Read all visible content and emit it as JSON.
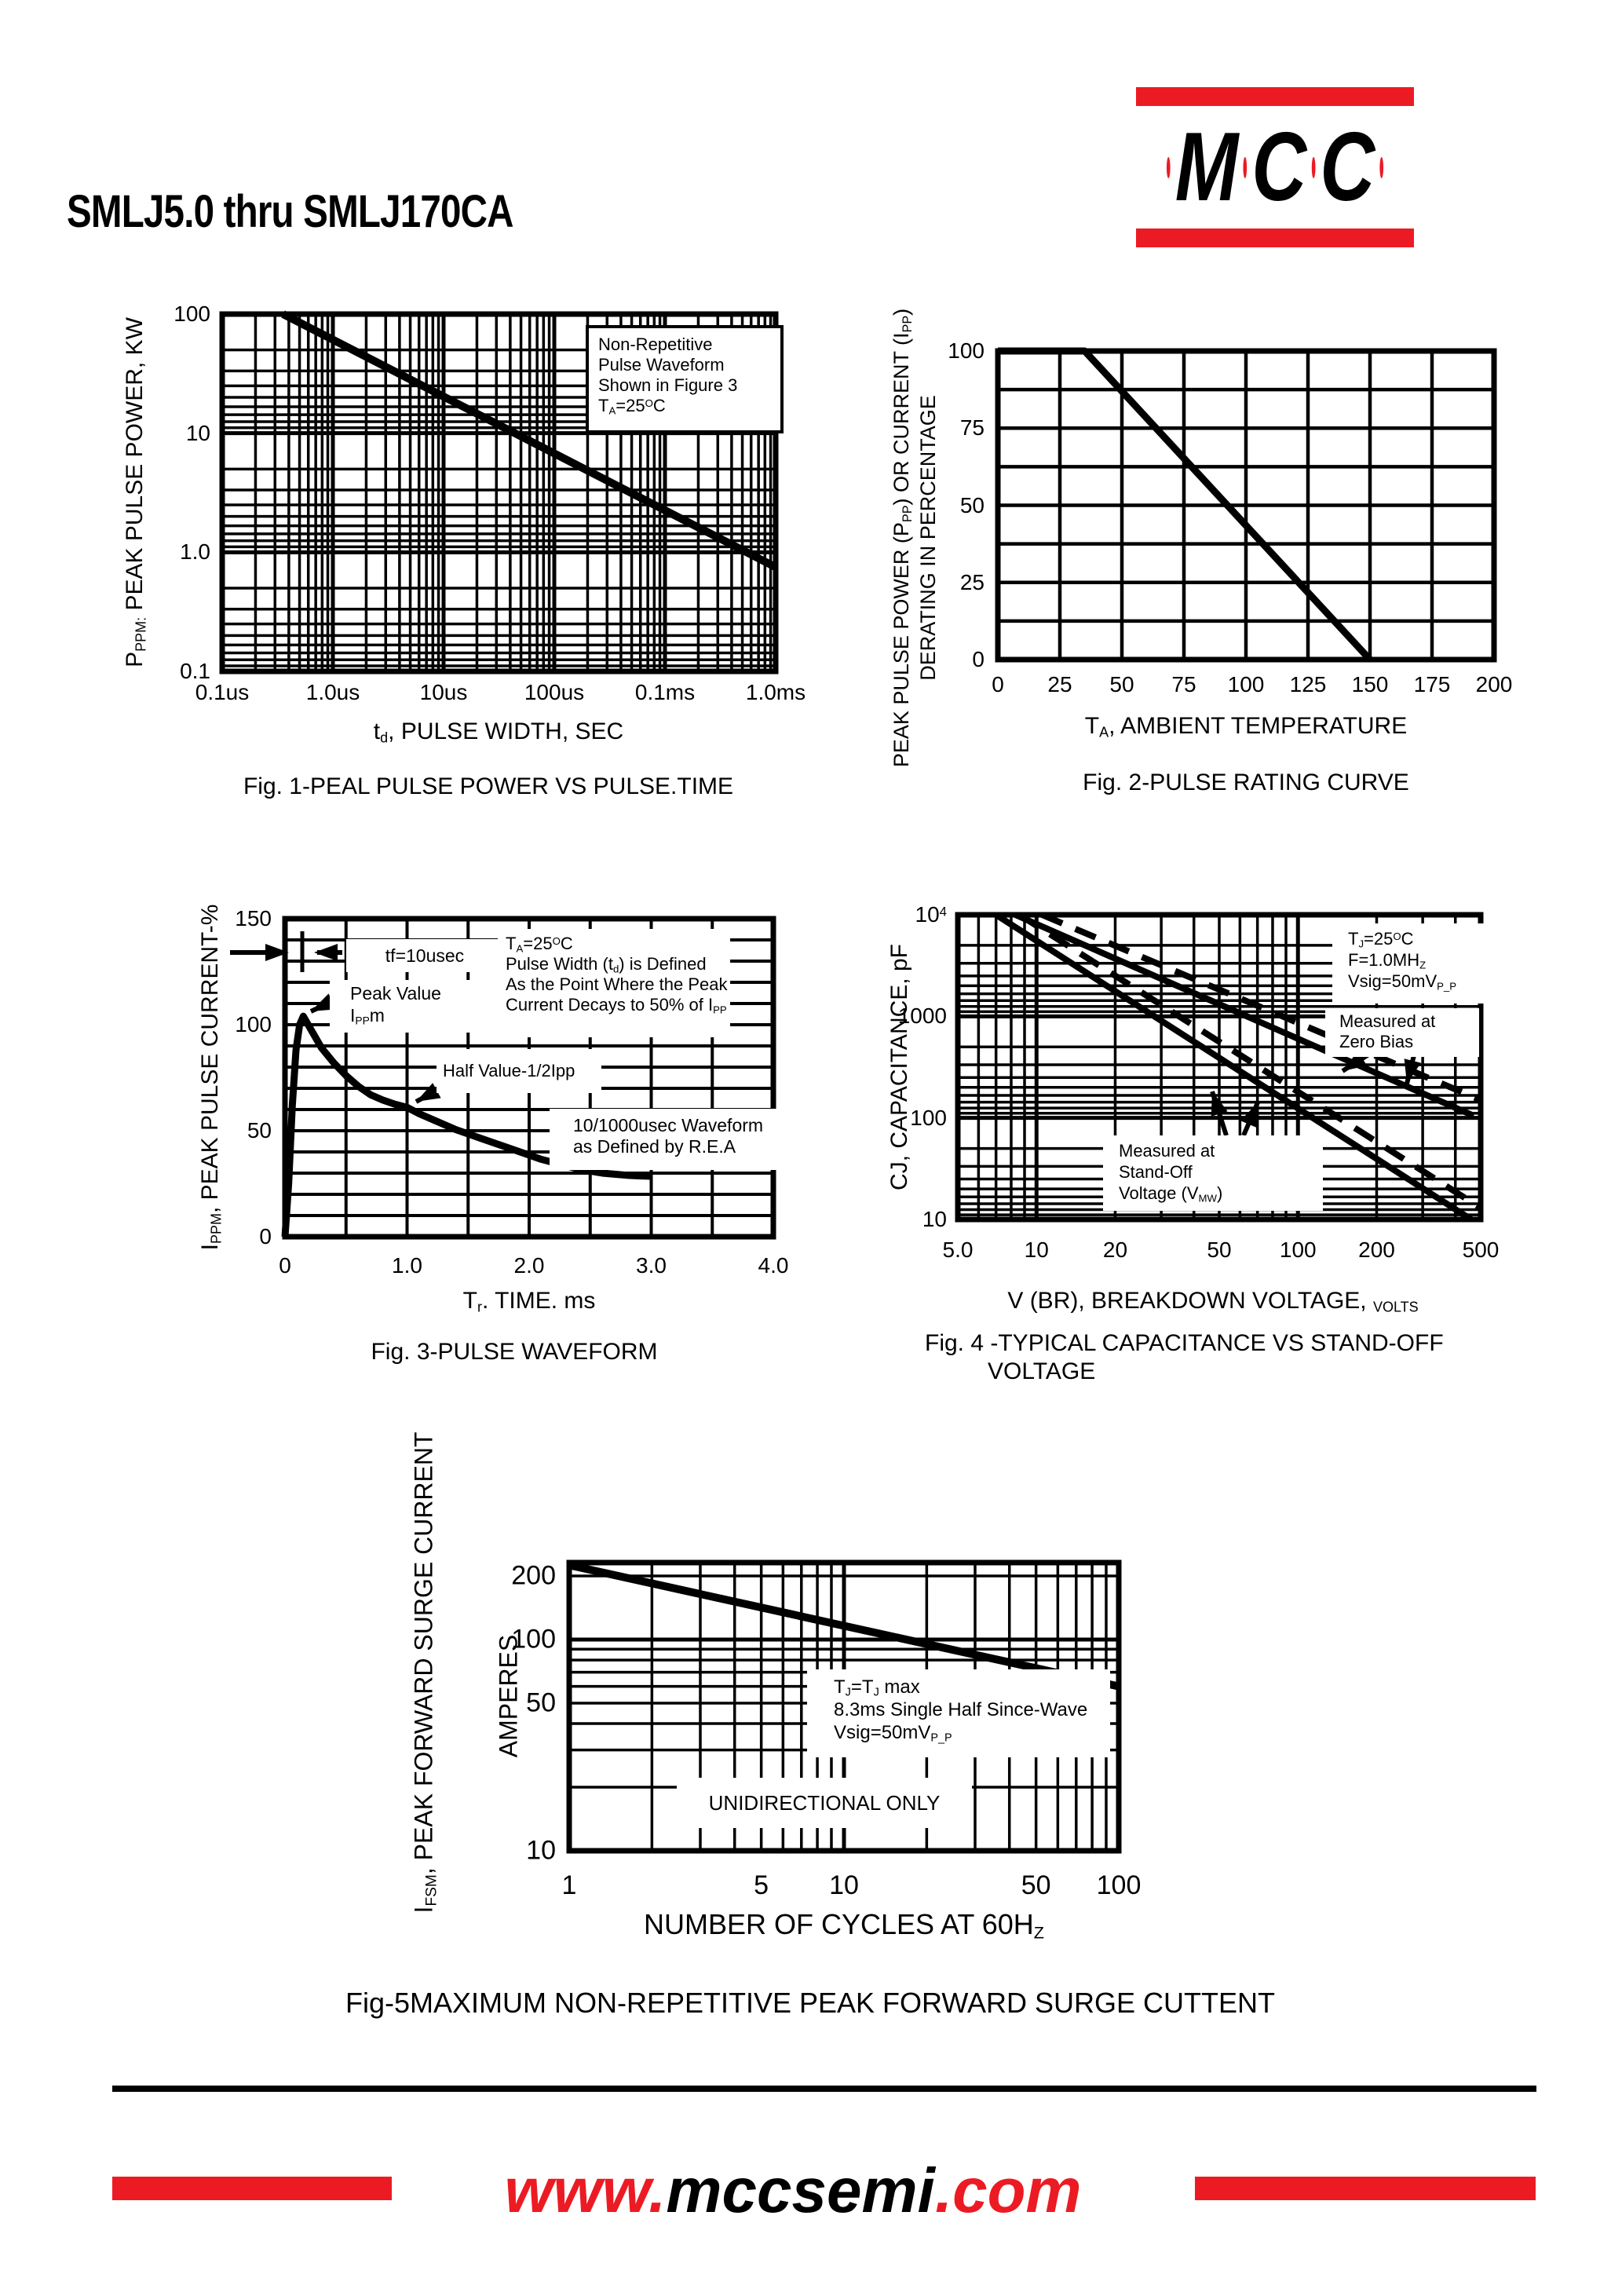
{
  "page": {
    "title": "SMLJ5.0 thru SMLJ170CA",
    "accent_red": "#ec1b23",
    "background": "#ffffff"
  },
  "logo": {
    "l1": "M",
    "l2": "C",
    "l3": "C"
  },
  "footer": {
    "www": "www.",
    "domain": "mccsemi",
    "tld": ".com"
  },
  "charts": {
    "fig1": {
      "ylabel": "P~PPM:~ PEAK PULSE POWER, KW",
      "xlabel": "t~d~, PULSE WIDTH, SEC",
      "caption": "Fig. 1-PEAL PULSE POWER VS PULSE.TIME",
      "note": [
        "Non-Repetitive",
        "Pulse Waveform",
        "Shown in Figure 3",
        "T~A~=25^O^C"
      ],
      "chart_data": {
        "type": "line",
        "log_x": true,
        "log_y": true,
        "x_tick_labels": [
          "0.1us",
          "1.0us",
          "10us",
          "100us",
          "0.1ms",
          "1.0ms"
        ],
        "y_tick_labels": [
          "100",
          "10",
          "1.0",
          "0.1"
        ],
        "ylim": [
          0.1,
          100
        ],
        "series": [
          {
            "name": "peak-pulse-power",
            "points_x_decades_vs_kw": [
              [
                0.55,
                100
              ],
              [
                5,
                0.75
              ]
            ]
          }
        ]
      }
    },
    "fig2": {
      "ylabel_line1": "PEAK PULSE POWER (P~PP~) OR CURRENT (I~PP~)",
      "ylabel_line2": "DERATING IN PERCENTAGE",
      "xlabel": "T~A~, AMBIENT TEMPERATURE",
      "caption": "Fig. 2-PULSE RATING CURVE",
      "chart_data": {
        "type": "line",
        "x_tick_labels": [
          "0",
          "25",
          "50",
          "75",
          "100",
          "125",
          "150",
          "175",
          "200"
        ],
        "y_tick_labels": [
          "100",
          "75",
          "50",
          "25",
          "0"
        ],
        "xlim": [
          0,
          200
        ],
        "ylim": [
          0,
          100
        ],
        "series": [
          {
            "name": "derating-percentage",
            "points": [
              [
                0,
                100
              ],
              [
                35,
                100
              ],
              [
                150,
                0
              ]
            ]
          }
        ]
      }
    },
    "fig3": {
      "ylabel": "I~PPM~, PEAK PULSE CURRENT-%",
      "xlabel": "T~r~. TIME. ms",
      "caption": "Fig. 3-PULSE WAVEFORM",
      "note_tf": "tf=10usec",
      "note_peak": [
        "Peak Value",
        "I~PP~m"
      ],
      "note_half": "Half Value-1/2Ipp",
      "note_cond": [
        "T~A~=25^O^C",
        "Pulse Width (t~d~) is Defined",
        "As the Point Where the Peak",
        "Current Decays to 50% of I~PP~"
      ],
      "note_wave": [
        "10/1000usec Waveform",
        "as Defined by R.E.A"
      ],
      "chart_data": {
        "type": "line",
        "x_tick_labels": [
          "0",
          "1.0",
          "2.0",
          "3.0",
          "4.0"
        ],
        "y_tick_labels": [
          "150",
          "100",
          "50",
          "0"
        ],
        "xlim": [
          0,
          4
        ],
        "ylim": [
          0,
          150
        ],
        "series": [
          {
            "name": "pulse-waveform",
            "points": [
              [
                0,
                0
              ],
              [
                0.03,
                25
              ],
              [
                0.06,
                62
              ],
              [
                0.09,
                88
              ],
              [
                0.12,
                100
              ],
              [
                0.15,
                104
              ],
              [
                0.2,
                99
              ],
              [
                0.25,
                94
              ],
              [
                0.3,
                89
              ],
              [
                0.4,
                82
              ],
              [
                0.5,
                76
              ],
              [
                0.6,
                71
              ],
              [
                0.7,
                67
              ],
              [
                0.8,
                64.5
              ],
              [
                0.9,
                62.5
              ],
              [
                1.0,
                61
              ],
              [
                1.1,
                58
              ],
              [
                1.2,
                55.5
              ],
              [
                1.3,
                53
              ],
              [
                1.4,
                50.5
              ],
              [
                1.5,
                48.5
              ],
              [
                1.6,
                46.5
              ],
              [
                1.7,
                44.5
              ],
              [
                1.8,
                42.5
              ],
              [
                1.9,
                40.5
              ],
              [
                2.0,
                38.5
              ],
              [
                2.1,
                36.5
              ],
              [
                2.2,
                35
              ],
              [
                2.3,
                33.5
              ],
              [
                2.4,
                32
              ],
              [
                2.5,
                31
              ],
              [
                2.6,
                30
              ],
              [
                2.7,
                29.5
              ],
              [
                2.8,
                29
              ],
              [
                2.9,
                28.7
              ],
              [
                3.0,
                28.5
              ]
            ]
          }
        ]
      }
    },
    "fig4": {
      "ylabel": "CJ, CAPACITANCE, pF",
      "xlabel": "V (BR), BREAKDOWN VOLTAGE, ~VOLTS~",
      "caption_line1": "Fig. 4 -TYPICAL CAPACITANCE VS STAND-OFF",
      "caption_line2": "VOLTAGE",
      "note_cond": [
        "T~J~=25^O^C",
        "F=1.0MH~Z~",
        "Vsig=50mV~P_P~"
      ],
      "note_zero": [
        "Measured at",
        "Zero Bias"
      ],
      "note_standoff": [
        "Measured at",
        "Stand-Off",
        "Voltage (V~MW~)"
      ],
      "chart_data": {
        "type": "line",
        "log_x": true,
        "log_y": true,
        "x_tick_labels": [
          "5.0",
          "10",
          "20",
          "50",
          "100",
          "200",
          "500"
        ],
        "y_tick_labels": [
          "10^4^",
          "1000",
          "100",
          "10"
        ],
        "xlim": [
          5,
          500
        ],
        "ylim": [
          10,
          10000
        ],
        "series": [
          {
            "name": "cj-steep-solid",
            "style": "solid",
            "points": [
              [
                7,
                10000
              ],
              [
                460,
                10
              ]
            ]
          },
          {
            "name": "cj-shallow-solid",
            "style": "solid",
            "points": [
              [
                8.3,
                10000
              ],
              [
                470,
                105
              ]
            ]
          },
          {
            "name": "cj-steep-dashed",
            "style": "dashed",
            "points": [
              [
                8.6,
                10000
              ],
              [
                500,
                13
              ]
            ]
          },
          {
            "name": "cj-shallow-dashed",
            "style": "dashed",
            "points": [
              [
                10.5,
                10000
              ],
              [
                500,
                150
              ]
            ]
          }
        ]
      }
    },
    "fig5": {
      "ylabel": "I~FSM~, PEAK FORWARD SURGE CURRENT",
      "ylabel2": "AMPERES",
      "xlabel": "NUMBER OF CYCLES AT 60H~Z~",
      "caption": "Fig-5MAXIMUM NON-REPETITIVE PEAK FORWARD SURGE CUTTENT",
      "note_cond": [
        "T~J~=T~J~ max",
        "8.3ms Single Half Since-Wave",
        "Vsig=50mV~P_P~"
      ],
      "note_uni": "UNIDIRECTIONAL ONLY",
      "chart_data": {
        "type": "line",
        "log_x": true,
        "log_y": true,
        "x_tick_labels": [
          "1",
          "5",
          "10",
          "50",
          "100"
        ],
        "y_tick_labels": [
          "200",
          "100",
          "50",
          "10"
        ],
        "xlim": [
          1,
          100
        ],
        "ylim": [
          10,
          230
        ],
        "series": [
          {
            "name": "surge-current",
            "points": [
              [
                1,
                225
              ],
              [
                100,
                60
              ]
            ]
          }
        ]
      }
    }
  }
}
